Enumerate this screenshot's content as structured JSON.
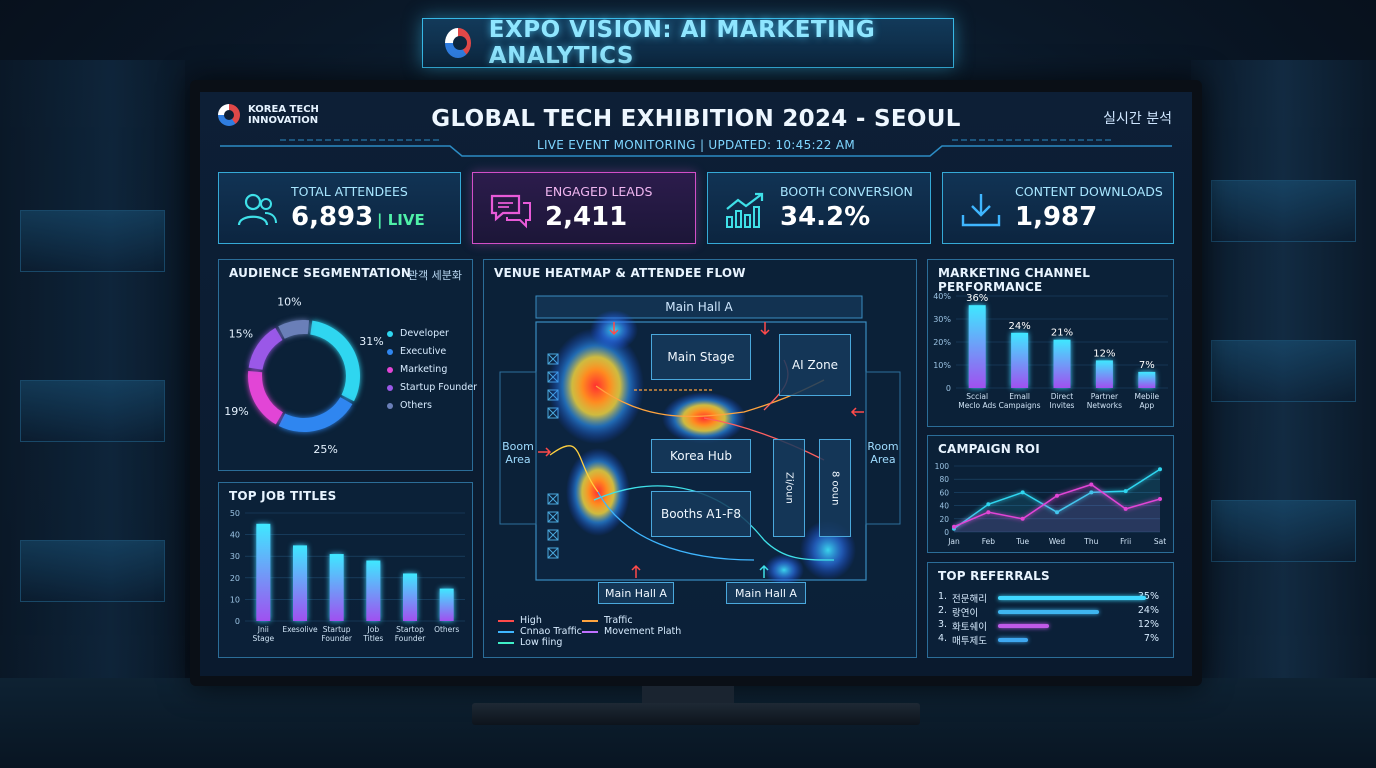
{
  "banner": {
    "title": "EXPO VISION: AI MARKETING ANALYTICS"
  },
  "header": {
    "brand": "KOREA TECH INNOVATION",
    "title": "GLOBAL TECH EXHIBITION 2024 - SEOUL",
    "subtitle": "LIVE EVENT MONITORING  |  UPDATED: 10:45:22 AM",
    "korean_label": "실시간 분석"
  },
  "kpis": [
    {
      "label": "TOTAL ATTENDEES",
      "value": "6,893",
      "badge": "| LIVE",
      "icon": "users-icon"
    },
    {
      "label": "ENGAGED LEADS",
      "value": "2,411",
      "icon": "chat-icon"
    },
    {
      "label": "BOOTH CONVERSION",
      "value": "34.2%",
      "icon": "trend-up-icon"
    },
    {
      "label": "CONTENT DOWNLOADS",
      "value": "1,987",
      "icon": "download-icon"
    }
  ],
  "audience": {
    "title": "AUDIENCE SEGMENTATION",
    "korean_label": "관객 세분화",
    "chart_data": {
      "type": "pie",
      "categories": [
        "Developer",
        "Executive",
        "Marketing",
        "Startup Founder",
        "Others"
      ],
      "values": [
        31,
        25,
        19,
        15,
        10
      ],
      "labels": [
        "31%",
        "25%",
        "19%",
        "15%",
        "10%"
      ],
      "colors": [
        "#2fd6f0",
        "#2f86f0",
        "#e245d6",
        "#9a58e8",
        "#6a7fb8"
      ]
    }
  },
  "job_titles": {
    "title": "TOP JOB TITLES",
    "chart_data": {
      "type": "bar",
      "categories": [
        "Jnii Stage",
        "Exesolive",
        "Startup Founder",
        "Job Titles",
        "Startop Founder",
        "Others"
      ],
      "values": [
        45,
        35,
        31,
        28,
        22,
        15
      ],
      "yticks": [
        "0",
        "10",
        "20",
        "30",
        "40",
        "50"
      ],
      "ylim": [
        0,
        50
      ]
    }
  },
  "venue": {
    "title": "VENUE HEATMAP & ATTENDEE FLOW",
    "top_hall": "Main Hall A",
    "main_stage": "Main Stage",
    "ai_zone": "AI Zone",
    "korea_hub": "Korea Hub",
    "booths": "Booths A1-F8",
    "left_area": "Boom Area",
    "right_area": "Room Area",
    "vert_a": "Zi/oun",
    "vert_b": "8 ooun",
    "bottom_left": "Main Hall A",
    "bottom_right": "Main Hall A",
    "legend": [
      {
        "label": "High",
        "color": "#ff4a4a"
      },
      {
        "label": "Cnnao Traffic",
        "color": "#3fb6ff"
      },
      {
        "label": "Low fiing",
        "color": "#3ff0c8"
      },
      {
        "label": "Traffic",
        "color": "#ffa43f"
      },
      {
        "label": "Movement Plath",
        "color": "#c070ff"
      }
    ]
  },
  "channels": {
    "title": "MARKETING CHANNEL PERFORMANCE",
    "chart_data": {
      "type": "bar",
      "categories": [
        "Sccial Meclo Ads",
        "Emall Campaigns",
        "Direct Invites",
        "Partner Networks",
        "Mebile App"
      ],
      "values": [
        36,
        24,
        21,
        12,
        7
      ],
      "labels": [
        "36%",
        "24%",
        "21%",
        "12%",
        "7%"
      ],
      "yticks": [
        "0",
        "10%",
        "20%",
        "30%",
        "40%"
      ],
      "ylim": [
        0,
        40
      ]
    }
  },
  "roi": {
    "title": "CAMPAIGN ROI",
    "chart_data": {
      "type": "line",
      "categories": [
        "Jan",
        "Feb",
        "Tue",
        "Wed",
        "Thu",
        "Frii",
        "Sat"
      ],
      "series": [
        {
          "values": [
            5,
            42,
            60,
            30,
            60,
            62,
            95
          ],
          "color": "#2fd6f0"
        },
        {
          "values": [
            8,
            30,
            20,
            55,
            72,
            35,
            50
          ],
          "color": "#e245d6"
        }
      ],
      "yticks": [
        "0",
        "20",
        "40",
        "60",
        "80",
        "100"
      ],
      "ylim": [
        0,
        100
      ]
    }
  },
  "referrals": {
    "title": "TOP REFERRALS",
    "items": [
      {
        "n": "1.",
        "label": "전문해리",
        "pct": "35%",
        "value": 35,
        "color": "#3fd8ff"
      },
      {
        "n": "2.",
        "label": "랑연이",
        "pct": "24%",
        "value": 24,
        "color": "#3fb6f0"
      },
      {
        "n": "3.",
        "label": "화토쉐이",
        "pct": "12%",
        "value": 12,
        "color": "#c05ae8"
      },
      {
        "n": "4.",
        "label": "매투제도",
        "pct": "7%",
        "value": 7,
        "color": "#3fa8f0"
      }
    ]
  }
}
